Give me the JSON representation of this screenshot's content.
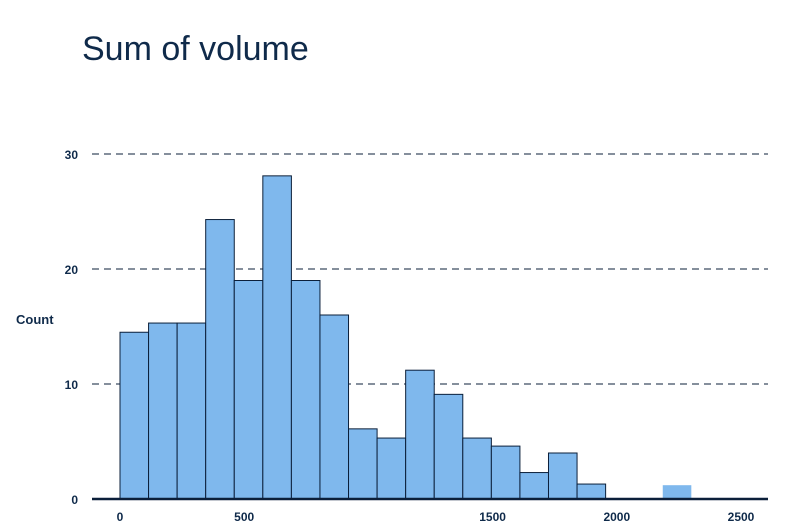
{
  "chart_data": {
    "type": "bar",
    "title": "Sum of volume",
    "xlabel": "",
    "ylabel": "Count",
    "xlim": [
      0,
      2500
    ],
    "ylim": [
      0,
      30
    ],
    "bin_width": 115,
    "x_ticks": [
      0,
      500,
      1500,
      2000,
      2500
    ],
    "y_ticks": [
      0,
      10,
      20,
      30
    ],
    "grid": "horizontal-dashed",
    "bin_starts": [
      0,
      115,
      230,
      345,
      460,
      575,
      690,
      805,
      920,
      1035,
      1150,
      1265,
      1380,
      1495,
      1610,
      1725,
      1840,
      1955,
      2070,
      2185,
      2300,
      2415
    ],
    "values": [
      14.5,
      15.3,
      15.3,
      24.3,
      19,
      28.1,
      19,
      16,
      6.1,
      5.3,
      11.2,
      9.1,
      5.3,
      4.6,
      2.3,
      4,
      1.3,
      0,
      0,
      1.2,
      0,
      0
    ],
    "highlighted_bin_index": 19,
    "colors": {
      "bar_fill": "#7fb8ed",
      "bar_stroke": "#0b1f3a",
      "highlight_fill": "#7fb8ed",
      "axis": "#0b1f3a",
      "grid": "#0b1f3a",
      "text": "#0f2a4a"
    }
  }
}
